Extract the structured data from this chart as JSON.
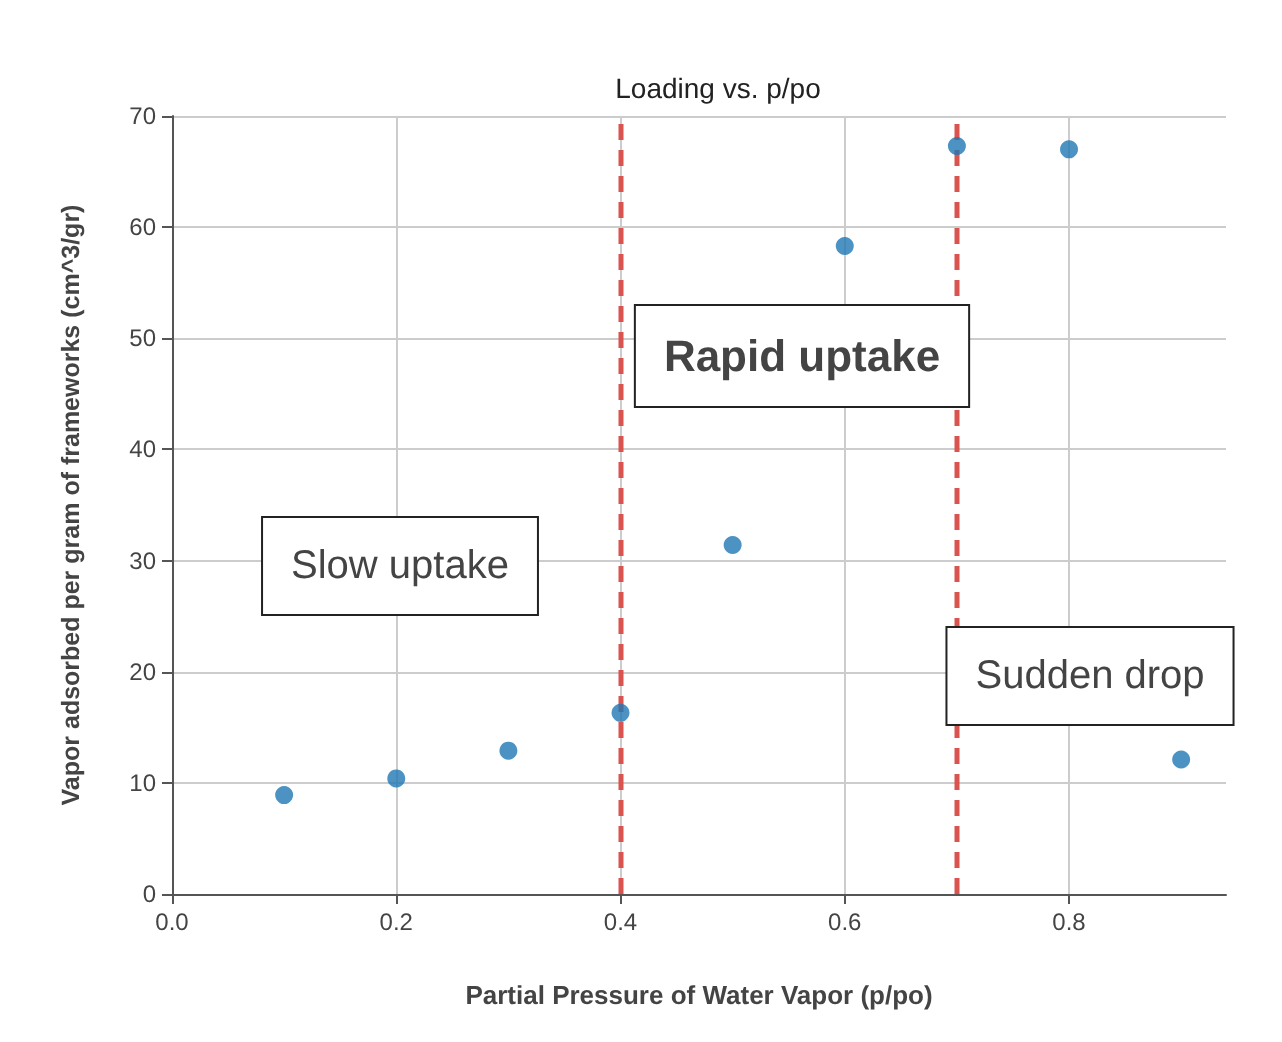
{
  "chart_data": {
    "type": "scatter",
    "title": "Loading vs. p/po",
    "xlabel": "Partial Pressure of Water Vapor (p/po)",
    "ylabel": "Vapor adsorbed per gram of frameworks (cm^3/gr)",
    "x": [
      0.1,
      0.2,
      0.3,
      0.4,
      0.5,
      0.6,
      0.7,
      0.8,
      0.9
    ],
    "series": [
      {
        "color": "#1f77b4",
        "values": [
          8.9,
          10.4,
          12.9,
          16.3,
          31.4,
          58.3,
          67.3,
          67.0,
          12.1
        ]
      }
    ],
    "xlim": [
      0,
      0.94
    ],
    "xticks": [
      {
        "value": 0,
        "label": "0.0"
      },
      0.2,
      0.4,
      0.6,
      0.8
    ],
    "ylim": [
      0,
      70
    ],
    "yticks": [
      0,
      10,
      20,
      30,
      40,
      50,
      60,
      70
    ],
    "grid": true,
    "marker": "circle",
    "ref_lines": [
      {
        "axis": "x",
        "value": 0.4,
        "color": "#d9534f",
        "line_style": "dashed"
      },
      {
        "axis": "x",
        "value": 0.7,
        "color": "#d9534f",
        "line_style": "dashed"
      }
    ],
    "annotations": [
      "Slow uptake",
      "Rapid uptake",
      "Sudden drop"
    ]
  }
}
